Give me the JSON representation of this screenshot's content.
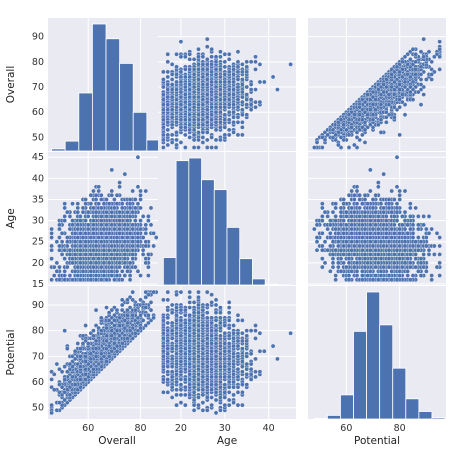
{
  "chart_data": {
    "type": "pairplot",
    "variables": [
      "Overall",
      "Age",
      "Potential"
    ],
    "ranges": {
      "Overall": [
        45,
        97
      ],
      "Age": [
        15,
        46
      ],
      "Potential": [
        46,
        97
      ]
    },
    "ticks": {
      "Overall": [
        50,
        60,
        70,
        80,
        90
      ],
      "Age": [
        15,
        20,
        25,
        30,
        35,
        40,
        45
      ],
      "Potential": [
        50,
        60,
        70,
        80,
        90
      ]
    },
    "x_ticks": {
      "Overall": [
        60,
        80
      ],
      "Age": [
        20,
        30,
        40
      ],
      "Potential": [
        60,
        80
      ]
    },
    "histograms": {
      "Overall": {
        "bin_edges": [
          46,
          51.2,
          56.4,
          61.6,
          66.8,
          72,
          77.2,
          82.4,
          87.6,
          92.8,
          98
        ],
        "counts": [
          55,
          260,
          1530,
          3350,
          2960,
          2310,
          1020,
          290,
          40,
          5
        ]
      },
      "Age": {
        "bin_edges": [
          16,
          18.9,
          21.8,
          24.7,
          27.6,
          30.5,
          33.4,
          36.3,
          39.2,
          42.1,
          45
        ],
        "counts": [
          720,
          3260,
          3330,
          2760,
          2500,
          1510,
          690,
          160,
          20,
          5
        ]
      },
      "Potential": {
        "bin_edges": [
          48,
          52.9,
          57.8,
          62.7,
          67.6,
          72.5,
          77.4,
          82.3,
          87.2,
          92.1,
          97
        ],
        "counts": [
          15,
          110,
          740,
          2690,
          3900,
          2890,
          1560,
          620,
          230,
          40
        ]
      }
    },
    "scatter_envelopes": {
      "Overall_Age": {
        "x_range": [
          46,
          94
        ],
        "y_range": [
          16,
          45
        ]
      },
      "Overall_Potential": {
        "lower_bound": "Potential >= Overall",
        "x_range": [
          46,
          94
        ],
        "y_range": [
          48,
          95
        ]
      },
      "Age_Potential": {
        "x_range": [
          16,
          44
        ],
        "y_range": [
          48,
          95
        ]
      }
    },
    "point_color": "#4c72b0",
    "bar_color": "#4c72b0",
    "panel_bg": "#eaeaf2",
    "grid": true
  }
}
